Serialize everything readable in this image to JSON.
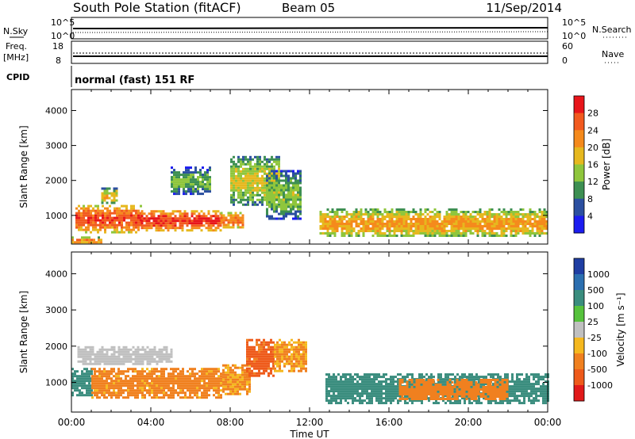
{
  "header": {
    "station": "South Pole Station (fitACF)",
    "beam": "Beam 05",
    "date": "11/Sep/2014"
  },
  "top_panels": {
    "nsky_label": "N.Sky",
    "nsky_ticks": [
      "10^5",
      "10^0"
    ],
    "nsearch_label": "N.Search",
    "nsearch_ticks": [
      "10^5",
      "10^0"
    ],
    "freq_label": "Freq.",
    "freq_unit": "[MHz]",
    "freq_ticks": [
      "18",
      "8"
    ],
    "nave_label": "Nave",
    "nave_ticks": [
      "60",
      "0"
    ],
    "cpid_label": "CPID",
    "cpid_text": "normal (fast) 151 RF"
  },
  "x_ticks": [
    "00:00",
    "04:00",
    "08:00",
    "12:00",
    "16:00",
    "20:00",
    "00:00"
  ],
  "x_label": "Time UT",
  "y_label": "Slant Range [km]",
  "power_colorbar": {
    "label": "Power [dB]",
    "ticks": [
      "28",
      "24",
      "20",
      "16",
      "12",
      "8",
      "4"
    ],
    "colors": [
      "#e8151a",
      "#f25a1f",
      "#f58a1c",
      "#e6b81e",
      "#8fc63c",
      "#3d8f52",
      "#2b4fa0",
      "#1b1cf0"
    ]
  },
  "velocity_colorbar": {
    "label": "Velocity [m s⁻¹]",
    "ticks": [
      "1000",
      "500",
      "100",
      "25",
      "-25",
      "-100",
      "-500",
      "-1000"
    ],
    "colors": [
      "#1f3ea3",
      "#2b6fb0",
      "#3a8d7e",
      "#56c23c",
      "#c0c0c0",
      "#f5b81e",
      "#f0801f",
      "#ee5a1a",
      "#e11919"
    ]
  },
  "chart_data": [
    {
      "type": "heatmap",
      "name": "power",
      "xlabel": "Time UT",
      "ylabel": "Slant Range [km]",
      "x_range_hours": [
        0,
        24
      ],
      "ylim": [
        180,
        4600
      ],
      "y_ticks": [
        1000,
        2000,
        3000,
        4000
      ],
      "colorbar_label": "Power [dB]",
      "colorbar_range": [
        0,
        32
      ],
      "regions": [
        {
          "t0": 0.2,
          "t1": 3.5,
          "r0": 550,
          "r1": 1300,
          "value": 22
        },
        {
          "t0": 3.5,
          "t1": 7.5,
          "r0": 600,
          "r1": 1150,
          "value": 24
        },
        {
          "t0": 7.5,
          "t1": 8.6,
          "r0": 650,
          "r1": 1100,
          "value": 20
        },
        {
          "t0": 1.5,
          "t1": 2.3,
          "r0": 1350,
          "r1": 1800,
          "value": 14
        },
        {
          "t0": 5.0,
          "t1": 7.0,
          "r0": 1600,
          "r1": 2400,
          "value": 8
        },
        {
          "t0": 8.0,
          "t1": 10.5,
          "r0": 1300,
          "r1": 2700,
          "value": 12
        },
        {
          "t0": 9.8,
          "t1": 11.5,
          "r0": 900,
          "r1": 2300,
          "value": 9
        },
        {
          "t0": 12.5,
          "t1": 24.0,
          "r0": 400,
          "r1": 1200,
          "value": 16
        },
        {
          "t0": 0.0,
          "t1": 1.5,
          "r0": 200,
          "r1": 400,
          "value": 18
        }
      ]
    },
    {
      "type": "heatmap",
      "name": "velocity",
      "xlabel": "Time UT",
      "ylabel": "Slant Range [km]",
      "x_range_hours": [
        0,
        24
      ],
      "ylim": [
        180,
        4600
      ],
      "y_ticks": [
        1000,
        2000,
        3000,
        4000
      ],
      "colorbar_label": "Velocity [m s⁻¹]",
      "colorbar_range": [
        -1000,
        1000
      ],
      "regions": [
        {
          "t0": 0.0,
          "t1": 1.0,
          "r0": 650,
          "r1": 1400,
          "value": 200
        },
        {
          "t0": 1.0,
          "t1": 7.6,
          "r0": 550,
          "r1": 1400,
          "value": -150
        },
        {
          "t0": 7.6,
          "t1": 9.0,
          "r0": 700,
          "r1": 1500,
          "value": -120
        },
        {
          "t0": 8.8,
          "t1": 10.2,
          "r0": 1200,
          "r1": 2200,
          "value": -700
        },
        {
          "t0": 10.2,
          "t1": 11.8,
          "r0": 1300,
          "r1": 2200,
          "value": -100
        },
        {
          "t0": 0.3,
          "t1": 5.0,
          "r0": 1500,
          "r1": 2000,
          "value": 10
        },
        {
          "t0": 12.8,
          "t1": 24.0,
          "r0": 450,
          "r1": 1250,
          "value": 300
        },
        {
          "t0": 16.5,
          "t1": 22.0,
          "r0": 550,
          "r1": 1100,
          "value": -200
        }
      ]
    }
  ]
}
